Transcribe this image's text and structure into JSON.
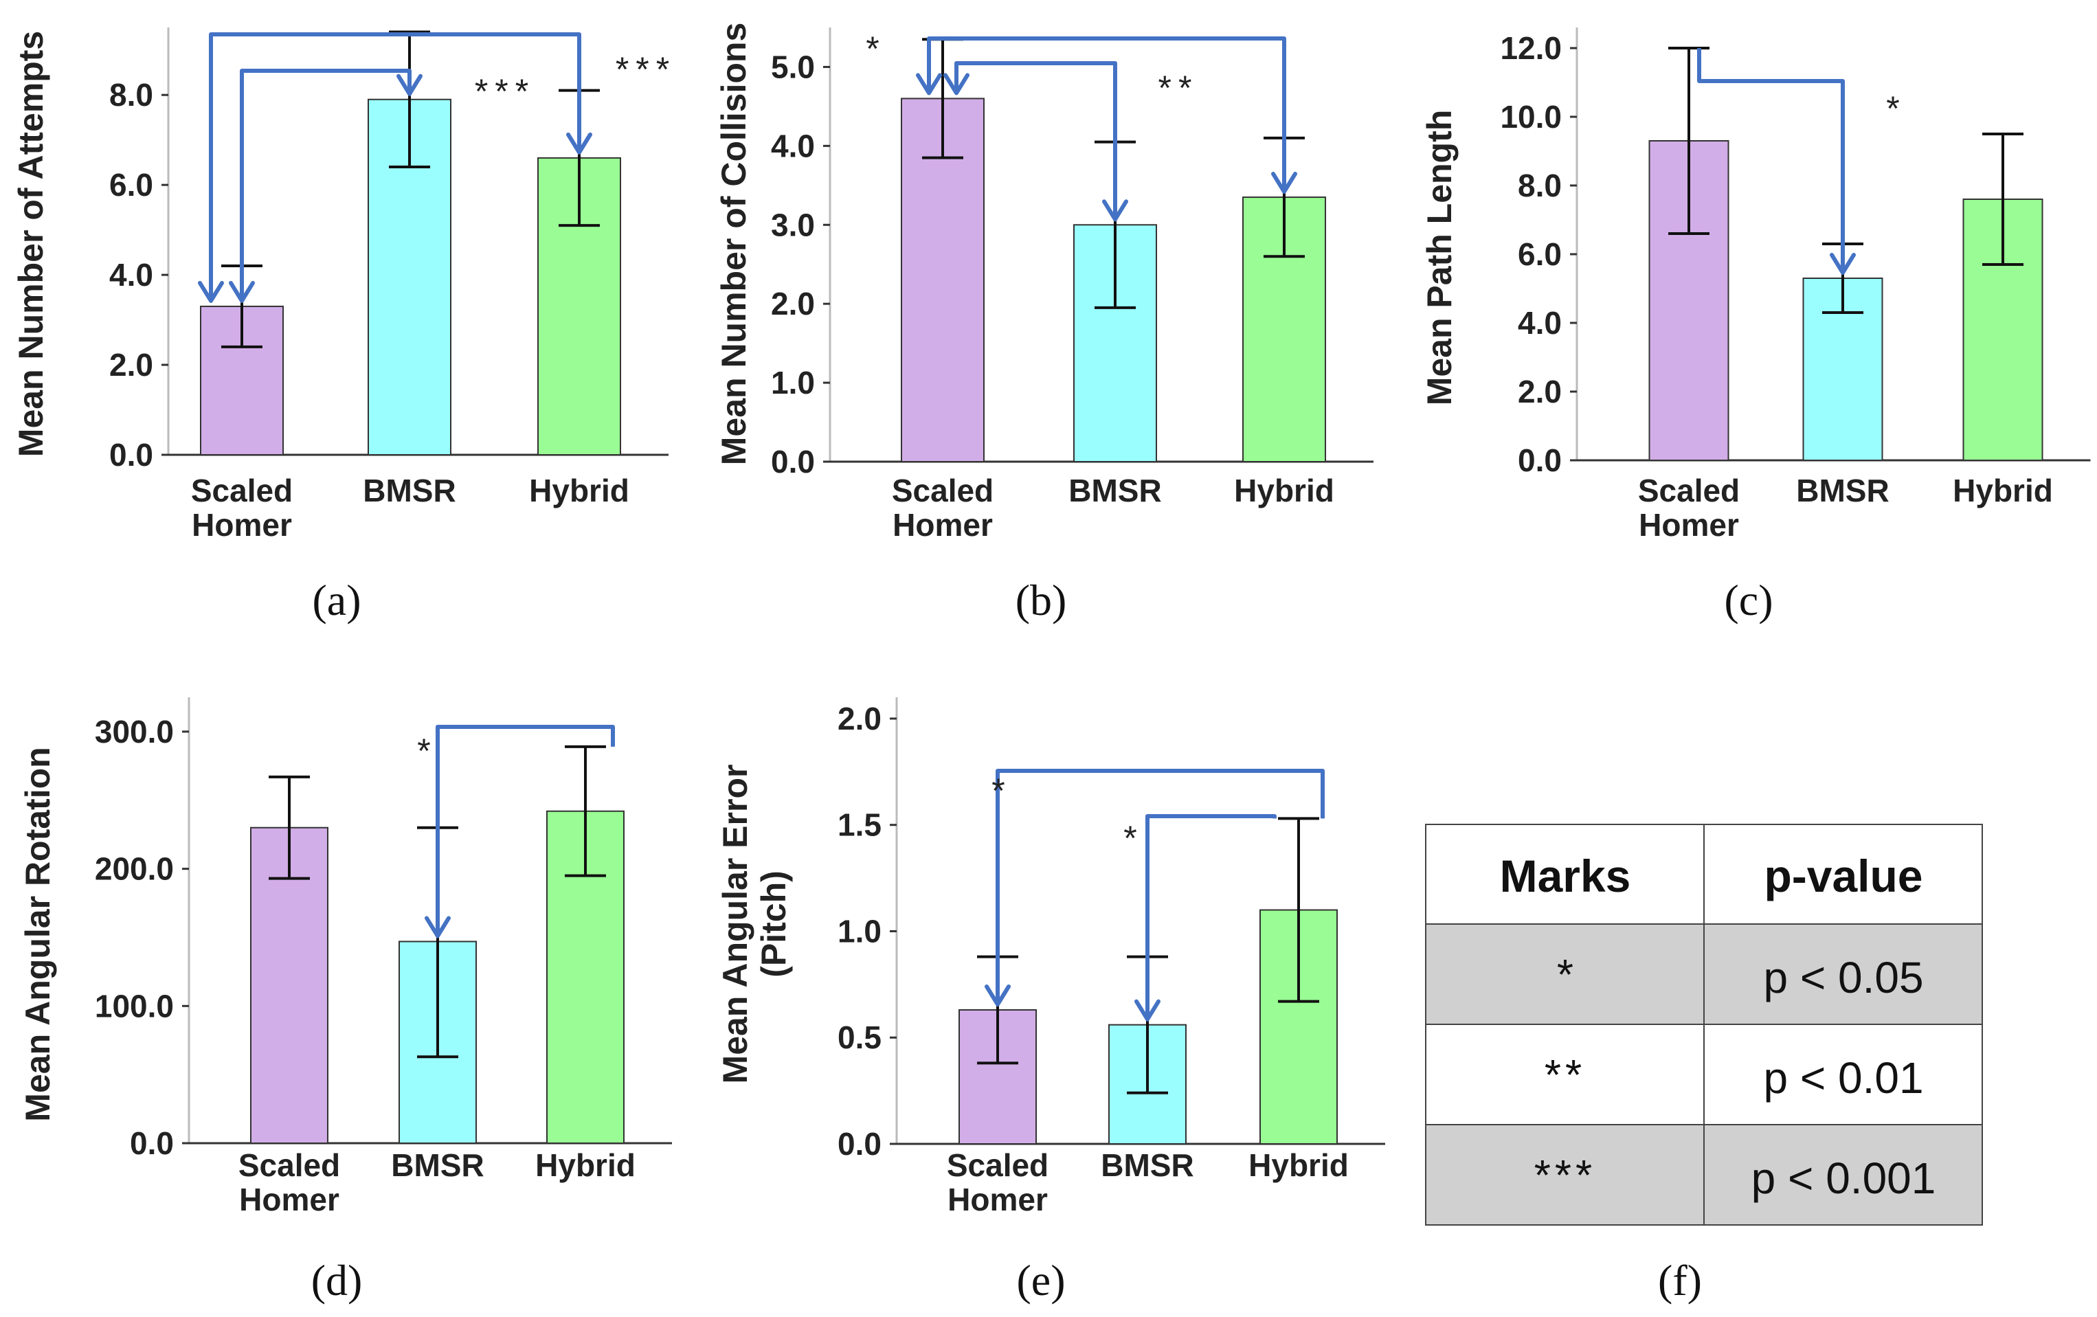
{
  "colors": {
    "purple": "#d2aee8",
    "cyan": "#9bfefe",
    "green": "#99fc94",
    "arrow": "#4472c4",
    "table_gray": "#d0d0d0"
  },
  "chart_data": [
    {
      "type": "bar",
      "caption": "(a)",
      "ylabel": "Mean Number of Attempts",
      "categories": [
        "Scaled\nHomer",
        "BMSR",
        "Hybrid"
      ],
      "values": [
        3.3,
        7.9,
        6.6
      ],
      "errors": [
        [
          2.4,
          4.2
        ],
        [
          6.4,
          9.4
        ],
        [
          5.1,
          8.1
        ]
      ],
      "ylim": [
        0,
        9.5
      ],
      "yticks": [
        "0.0",
        "2.0",
        "4.0",
        "6.0",
        "8.0"
      ],
      "significance": [
        {
          "from": 0,
          "to": 1,
          "label": "***"
        },
        {
          "from": 0,
          "to": 2,
          "label": "***"
        }
      ]
    },
    {
      "type": "bar",
      "caption": "(b)",
      "ylabel": "Mean Number of Collisions",
      "categories": [
        "Scaled\nHomer",
        "BMSR",
        "Hybrid"
      ],
      "values": [
        4.6,
        3.0,
        3.35
      ],
      "errors": [
        [
          3.85,
          5.35
        ],
        [
          1.95,
          4.05
        ],
        [
          2.6,
          4.1
        ]
      ],
      "ylim": [
        0,
        5.5
      ],
      "yticks": [
        "0.0",
        "1.0",
        "2.0",
        "3.0",
        "4.0",
        "5.0"
      ],
      "significance": [
        {
          "from": 0,
          "to": 1,
          "label": "**"
        },
        {
          "from": 0,
          "to": 2,
          "label": "*"
        }
      ]
    },
    {
      "type": "bar",
      "caption": "(c)",
      "ylabel": "Mean Path Length",
      "categories": [
        "Scaled\nHomer",
        "BMSR",
        "Hybrid"
      ],
      "values": [
        9.3,
        5.3,
        7.6
      ],
      "errors": [
        [
          6.6,
          12.0
        ],
        [
          4.3,
          6.3
        ],
        [
          5.7,
          9.5
        ]
      ],
      "ylim": [
        0,
        12.6
      ],
      "yticks": [
        "0.0",
        "2.0",
        "4.0",
        "6.0",
        "8.0",
        "10.0",
        "12.0"
      ],
      "significance": [
        {
          "from": 0,
          "to": 1,
          "label": "*"
        }
      ]
    },
    {
      "type": "bar",
      "caption": "(d)",
      "ylabel": "Mean Angular Rotation",
      "categories": [
        "Scaled\nHomer",
        "BMSR",
        "Hybrid"
      ],
      "values": [
        230,
        147,
        242
      ],
      "errors": [
        [
          193,
          267
        ],
        [
          63,
          230
        ],
        [
          195,
          289
        ]
      ],
      "ylim": [
        0,
        325
      ],
      "yticks": [
        "0.0",
        "100.0",
        "200.0",
        "300.0"
      ],
      "significance": [
        {
          "from": 2,
          "to": 1,
          "label": "*"
        }
      ]
    },
    {
      "type": "bar",
      "caption": "(e)",
      "ylabel": "Mean Angular Error\n(Pitch)",
      "categories": [
        "Scaled\nHomer",
        "BMSR",
        "Hybrid"
      ],
      "values": [
        0.63,
        0.56,
        1.1
      ],
      "errors": [
        [
          0.38,
          0.88
        ],
        [
          0.24,
          0.88
        ],
        [
          0.67,
          1.53
        ]
      ],
      "ylim": [
        0,
        2.1
      ],
      "yticks": [
        "0.0",
        "0.5",
        "1.0",
        "1.5",
        "2.0"
      ],
      "significance": [
        {
          "from": 2,
          "to": 0,
          "label": "*"
        },
        {
          "from": 2,
          "to": 1,
          "label": "*"
        }
      ]
    }
  ],
  "legend_table": {
    "caption": "(f)",
    "headers": [
      "Marks",
      "p-value"
    ],
    "rows": [
      [
        "*",
        "p < 0.05"
      ],
      [
        "**",
        "p < 0.01"
      ],
      [
        "***",
        "p < 0.001"
      ]
    ]
  }
}
